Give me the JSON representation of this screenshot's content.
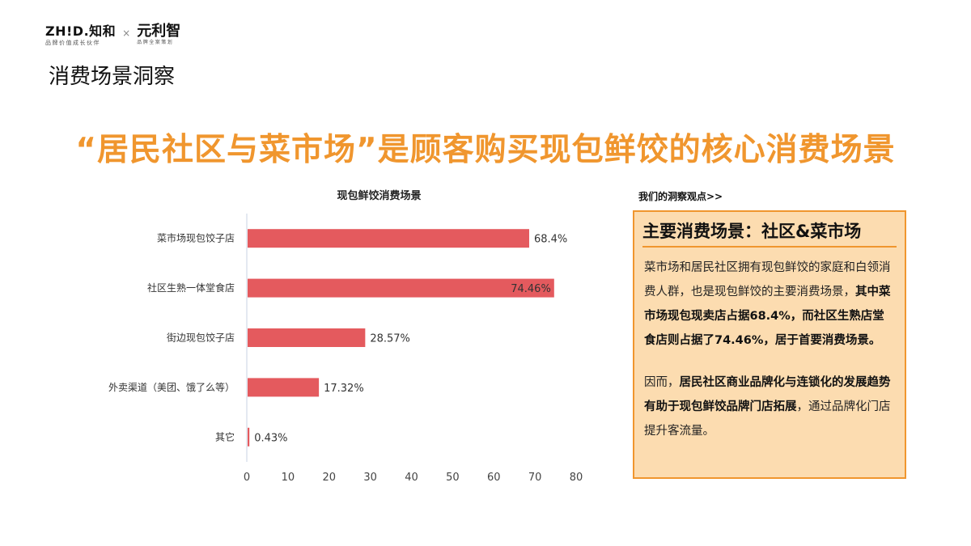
{
  "header": {
    "logo_zhid": "ZH!D.知和",
    "logo_zhid_tagline": "品牌价值成长伙伴",
    "logo_separator": "×",
    "logo_yuan": "元利智",
    "logo_yuan_tagline": "品牌全案策划",
    "page_title": "消费场景洞察"
  },
  "headline": "“居民社区与菜市场”是顾客购买现包鲜饺的核心消费场景",
  "insight": {
    "heading": "我们的洞察观点>>",
    "title": "主要消费场景：社区&菜市场",
    "p1_a": "菜市场和居民社区拥有现包鲜饺的家庭和白领消费人群，也是现包鲜饺的主要消费场景，",
    "p1_b": "其中菜市场现包现卖店占据68.4%，而社区生熟店堂食店则占据了74.46%，居于首要消费场景。",
    "p2_a": "因而，",
    "p2_b": "居民社区商业品牌化与连锁化的发展趋势有助于现包鲜饺品牌门店拓展",
    "p2_c": "，通过品牌化门店提升客流量。"
  },
  "colors": {
    "accent_orange": "#f0962e",
    "box_fill": "#fcdcb0",
    "bar_red": "#e45a5e"
  },
  "chart_data": {
    "type": "bar",
    "orientation": "horizontal",
    "title": "现包鲜饺消费场景",
    "categories": [
      "菜市场现包饺子店",
      "社区生熟一体堂食店",
      "街边现包饺子店",
      "外卖渠道（美团、饿了么等）",
      "其它"
    ],
    "values": [
      68.4,
      74.46,
      28.57,
      17.32,
      0.43
    ],
    "value_labels": [
      "68.4%",
      "74.46%",
      "28.57%",
      "17.32%",
      "0.43%"
    ],
    "xlim": [
      0,
      80
    ],
    "xticks": [
      "0",
      "10",
      "20",
      "30",
      "40",
      "50",
      "60",
      "70",
      "80"
    ],
    "grid": false,
    "legend": false
  }
}
